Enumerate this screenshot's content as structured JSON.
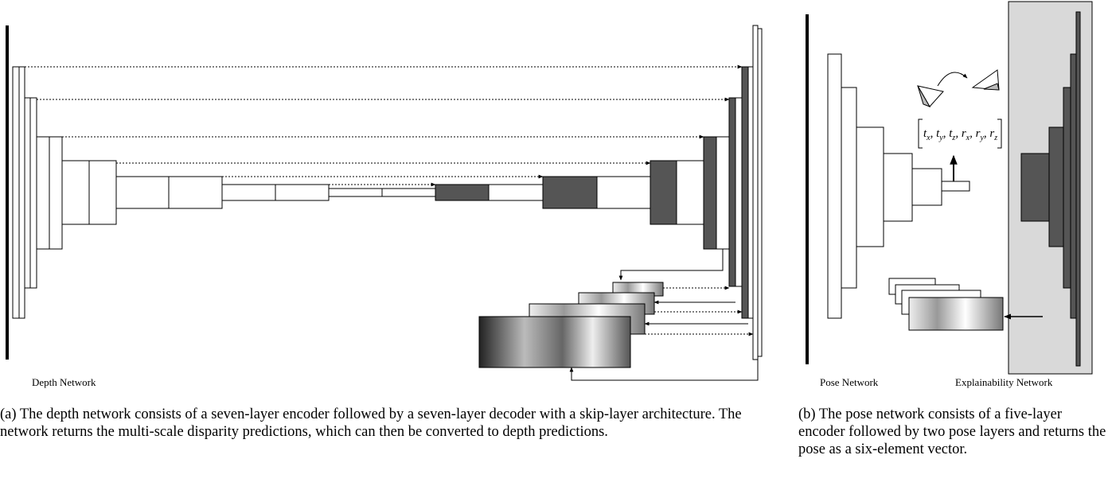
{
  "depth_label": "Depth Network",
  "pose_label": "Pose Network",
  "explain_label": "Explainability Network",
  "pose_vector": {
    "separator": ", ",
    "terms": [
      {
        "base": "t",
        "sub": "x"
      },
      {
        "base": "t",
        "sub": "y"
      },
      {
        "base": "t",
        "sub": "z"
      },
      {
        "base": "r",
        "sub": "x"
      },
      {
        "base": "r",
        "sub": "y"
      },
      {
        "base": "r",
        "sub": "z"
      }
    ]
  },
  "caption_a": "(a) The depth network consists of a seven-layer encoder followed by a seven-layer decoder with a skip-layer architecture. The network returns the multi-scale disparity predictions, which can then be converted to depth predictions.",
  "caption_b": "(b) The pose network consists of a five-layer encoder followed by two pose layers and returns the pose as a six-element vector."
}
